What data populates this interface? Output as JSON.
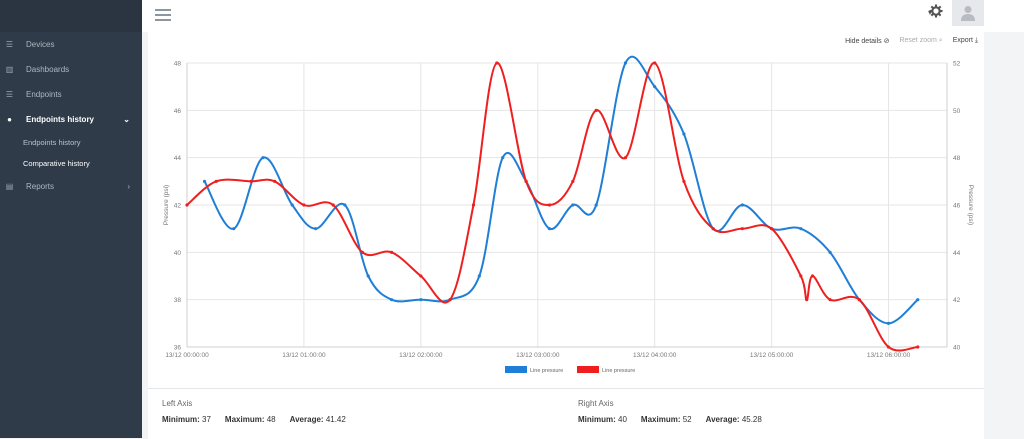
{
  "sidebar": {
    "items": [
      {
        "label": "Devices",
        "icon": "list-icon"
      },
      {
        "label": "Dashboards",
        "icon": "chart-icon"
      },
      {
        "label": "Endpoints",
        "icon": "list-icon"
      },
      {
        "label": "Endpoints history",
        "icon": "clock-icon"
      },
      {
        "label": "Reports",
        "icon": "file-icon"
      }
    ],
    "sub_items": [
      {
        "label": "Endpoints history"
      },
      {
        "label": "Comparative history"
      }
    ]
  },
  "toolbar": {
    "hide_details": "Hide details",
    "reset_zoom": "Reset zoom",
    "export": "Export"
  },
  "chart_data": {
    "type": "line",
    "x_ticks": [
      "13/12 00:00:00",
      "13/12 01:00:00",
      "13/12 02:00:00",
      "13/12 03:00:00",
      "13/12 04:00:00",
      "13/12 05:00:00",
      "13/12 06:00:00"
    ],
    "xlim": [
      0,
      6.5
    ],
    "left_axis": {
      "label": "Pressure (psi)",
      "ylim": [
        36,
        48
      ],
      "ticks": [
        36,
        38,
        40,
        42,
        44,
        46,
        48
      ]
    },
    "right_axis": {
      "label": "Pressure (psi)",
      "ylim": [
        40,
        52
      ],
      "ticks": [
        40,
        42,
        44,
        46,
        48,
        50,
        52
      ]
    },
    "grid": true,
    "legend_position": "bottom",
    "series": [
      {
        "name": "Line pressure",
        "color": "#1f7fd6",
        "axis": "left",
        "x": [
          0.15,
          0.4,
          0.65,
          0.9,
          1.1,
          1.35,
          1.55,
          1.75,
          2.0,
          2.25,
          2.5,
          2.7,
          2.9,
          3.1,
          3.3,
          3.5,
          3.75,
          4.0,
          4.25,
          4.5,
          4.75,
          5.0,
          5.25,
          5.5,
          5.75,
          6.0,
          6.25
        ],
        "values": [
          43,
          41,
          44,
          42,
          41,
          42,
          39,
          38,
          38,
          38,
          39,
          44,
          43,
          41,
          42,
          42,
          48,
          47,
          45,
          41,
          42,
          41,
          41,
          40,
          38,
          37,
          38
        ]
      },
      {
        "name": "Line pressure",
        "color": "#ef1f1f",
        "axis": "right",
        "x": [
          0.0,
          0.25,
          0.55,
          0.75,
          1.0,
          1.25,
          1.5,
          1.75,
          2.0,
          2.25,
          2.45,
          2.65,
          2.9,
          3.1,
          3.3,
          3.5,
          3.75,
          4.0,
          4.25,
          4.5,
          4.75,
          5.0,
          5.25,
          5.3,
          5.35,
          5.5,
          5.75,
          6.0,
          6.25
        ],
        "values": [
          46,
          47,
          47,
          47,
          46,
          46,
          44,
          44,
          43,
          42,
          46,
          52,
          47,
          46,
          47,
          50,
          48,
          52,
          47,
          45,
          45,
          45,
          43,
          42,
          43,
          42,
          42,
          40,
          40
        ]
      }
    ]
  },
  "stats": {
    "left": {
      "title": "Left Axis",
      "min_label": "Minimum:",
      "min": "37",
      "max_label": "Maximum:",
      "max": "48",
      "avg_label": "Average:",
      "avg": "41.42"
    },
    "right": {
      "title": "Right Axis",
      "min_label": "Minimum:",
      "min": "40",
      "max_label": "Maximum:",
      "max": "52",
      "avg_label": "Average:",
      "avg": "45.28"
    }
  }
}
